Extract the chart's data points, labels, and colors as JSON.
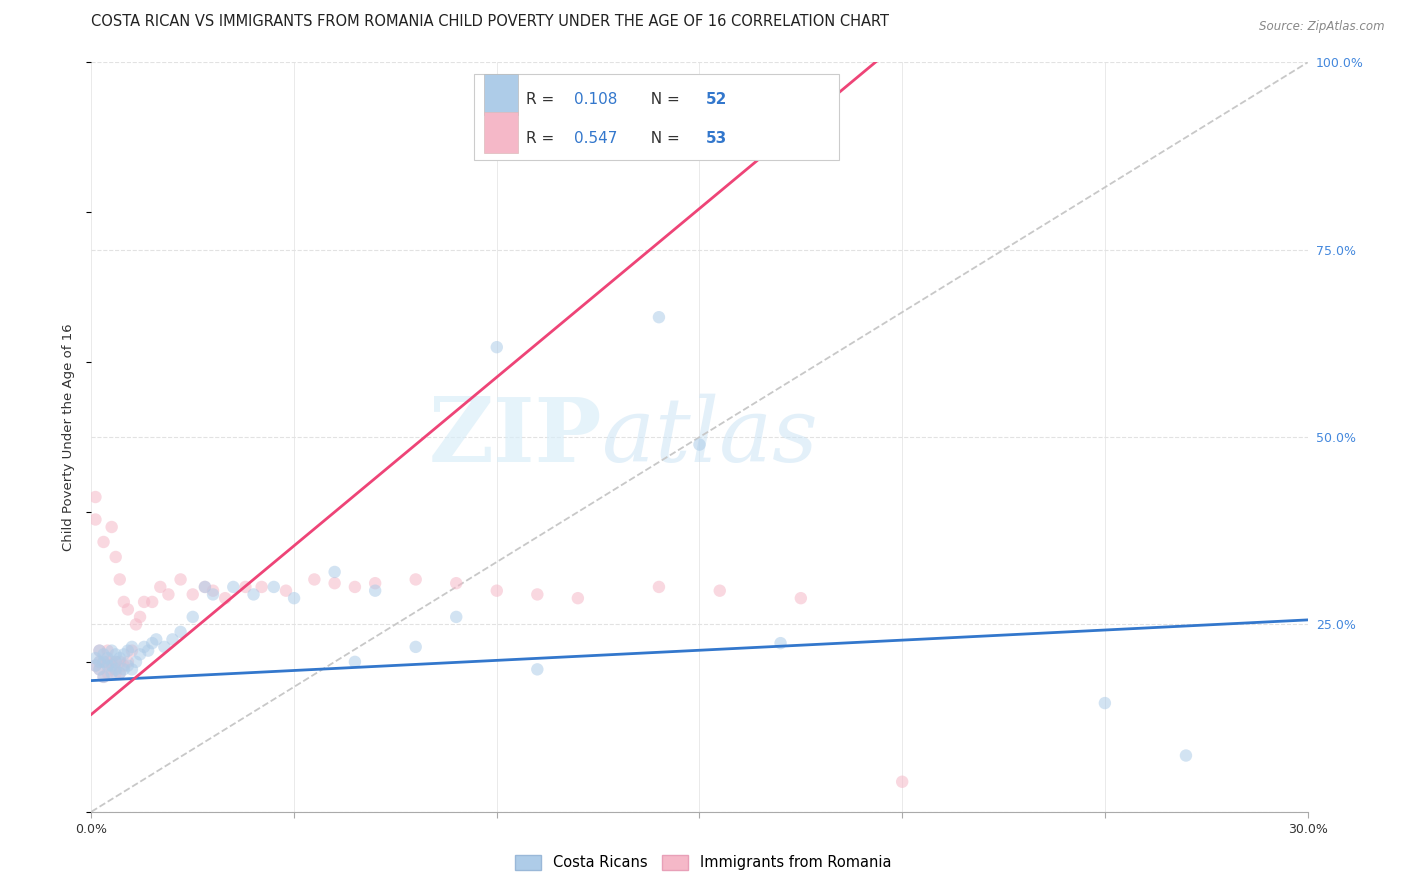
{
  "title": "COSTA RICAN VS IMMIGRANTS FROM ROMANIA CHILD POVERTY UNDER THE AGE OF 16 CORRELATION CHART",
  "source": "Source: ZipAtlas.com",
  "ylabel": "Child Poverty Under the Age of 16",
  "xmin": 0.0,
  "xmax": 0.3,
  "ymin": 0.0,
  "ymax": 1.0,
  "xticks": [
    0.0,
    0.05,
    0.1,
    0.15,
    0.2,
    0.25,
    0.3
  ],
  "xtick_labels": [
    "0.0%",
    "",
    "",
    "",
    "",
    "",
    "30.0%"
  ],
  "yticks": [
    0.0,
    0.25,
    0.5,
    0.75,
    1.0
  ],
  "ytick_labels": [
    "",
    "25.0%",
    "50.0%",
    "75.0%",
    "100.0%"
  ],
  "legend1_R": "0.108",
  "legend1_N": "52",
  "legend2_R": "0.547",
  "legend2_N": "53",
  "series1_face": "#aecce8",
  "series2_face": "#f5b8c8",
  "line1_color": "#3377cc",
  "line2_color": "#ee4477",
  "diag_color": "#c8c8c8",
  "background_color": "#ffffff",
  "grid_color": "#e2e2e2",
  "right_axis_color": "#4488dd",
  "legend_text_color": "#333333",
  "legend_val_color": "#3377cc",
  "slope1": 0.27,
  "intercept1": 0.175,
  "slope2": 4.5,
  "intercept2": 0.13,
  "scatter1_x": [
    0.001,
    0.001,
    0.002,
    0.002,
    0.002,
    0.003,
    0.003,
    0.003,
    0.004,
    0.004,
    0.005,
    0.005,
    0.005,
    0.006,
    0.006,
    0.006,
    0.007,
    0.007,
    0.008,
    0.008,
    0.009,
    0.009,
    0.01,
    0.01,
    0.011,
    0.012,
    0.013,
    0.014,
    0.015,
    0.016,
    0.018,
    0.02,
    0.022,
    0.025,
    0.028,
    0.03,
    0.035,
    0.04,
    0.045,
    0.05,
    0.06,
    0.065,
    0.07,
    0.08,
    0.09,
    0.1,
    0.11,
    0.14,
    0.15,
    0.17,
    0.25,
    0.27
  ],
  "scatter1_y": [
    0.195,
    0.205,
    0.19,
    0.2,
    0.215,
    0.18,
    0.2,
    0.21,
    0.195,
    0.205,
    0.185,
    0.195,
    0.215,
    0.19,
    0.2,
    0.21,
    0.185,
    0.205,
    0.19,
    0.21,
    0.195,
    0.215,
    0.19,
    0.22,
    0.2,
    0.21,
    0.22,
    0.215,
    0.225,
    0.23,
    0.22,
    0.23,
    0.24,
    0.26,
    0.3,
    0.29,
    0.3,
    0.29,
    0.3,
    0.285,
    0.32,
    0.2,
    0.295,
    0.22,
    0.26,
    0.62,
    0.19,
    0.66,
    0.49,
    0.225,
    0.145,
    0.075
  ],
  "scatter2_x": [
    0.001,
    0.001,
    0.001,
    0.002,
    0.002,
    0.002,
    0.003,
    0.003,
    0.003,
    0.004,
    0.004,
    0.004,
    0.005,
    0.005,
    0.005,
    0.006,
    0.006,
    0.006,
    0.007,
    0.007,
    0.007,
    0.008,
    0.008,
    0.009,
    0.009,
    0.01,
    0.011,
    0.012,
    0.013,
    0.015,
    0.017,
    0.019,
    0.022,
    0.025,
    0.028,
    0.03,
    0.033,
    0.038,
    0.042,
    0.048,
    0.055,
    0.06,
    0.065,
    0.07,
    0.08,
    0.09,
    0.1,
    0.11,
    0.12,
    0.14,
    0.155,
    0.175,
    0.2
  ],
  "scatter2_y": [
    0.195,
    0.39,
    0.42,
    0.19,
    0.2,
    0.215,
    0.18,
    0.2,
    0.36,
    0.185,
    0.2,
    0.215,
    0.19,
    0.2,
    0.38,
    0.185,
    0.2,
    0.34,
    0.185,
    0.2,
    0.31,
    0.195,
    0.28,
    0.2,
    0.27,
    0.215,
    0.25,
    0.26,
    0.28,
    0.28,
    0.3,
    0.29,
    0.31,
    0.29,
    0.3,
    0.295,
    0.285,
    0.3,
    0.3,
    0.295,
    0.31,
    0.305,
    0.3,
    0.305,
    0.31,
    0.305,
    0.295,
    0.29,
    0.285,
    0.3,
    0.295,
    0.285,
    0.04
  ],
  "marker_size": 80,
  "alpha": 0.55,
  "title_fontsize": 10.5,
  "axis_label_fontsize": 9.5,
  "tick_fontsize": 9,
  "legend_fontsize": 11
}
